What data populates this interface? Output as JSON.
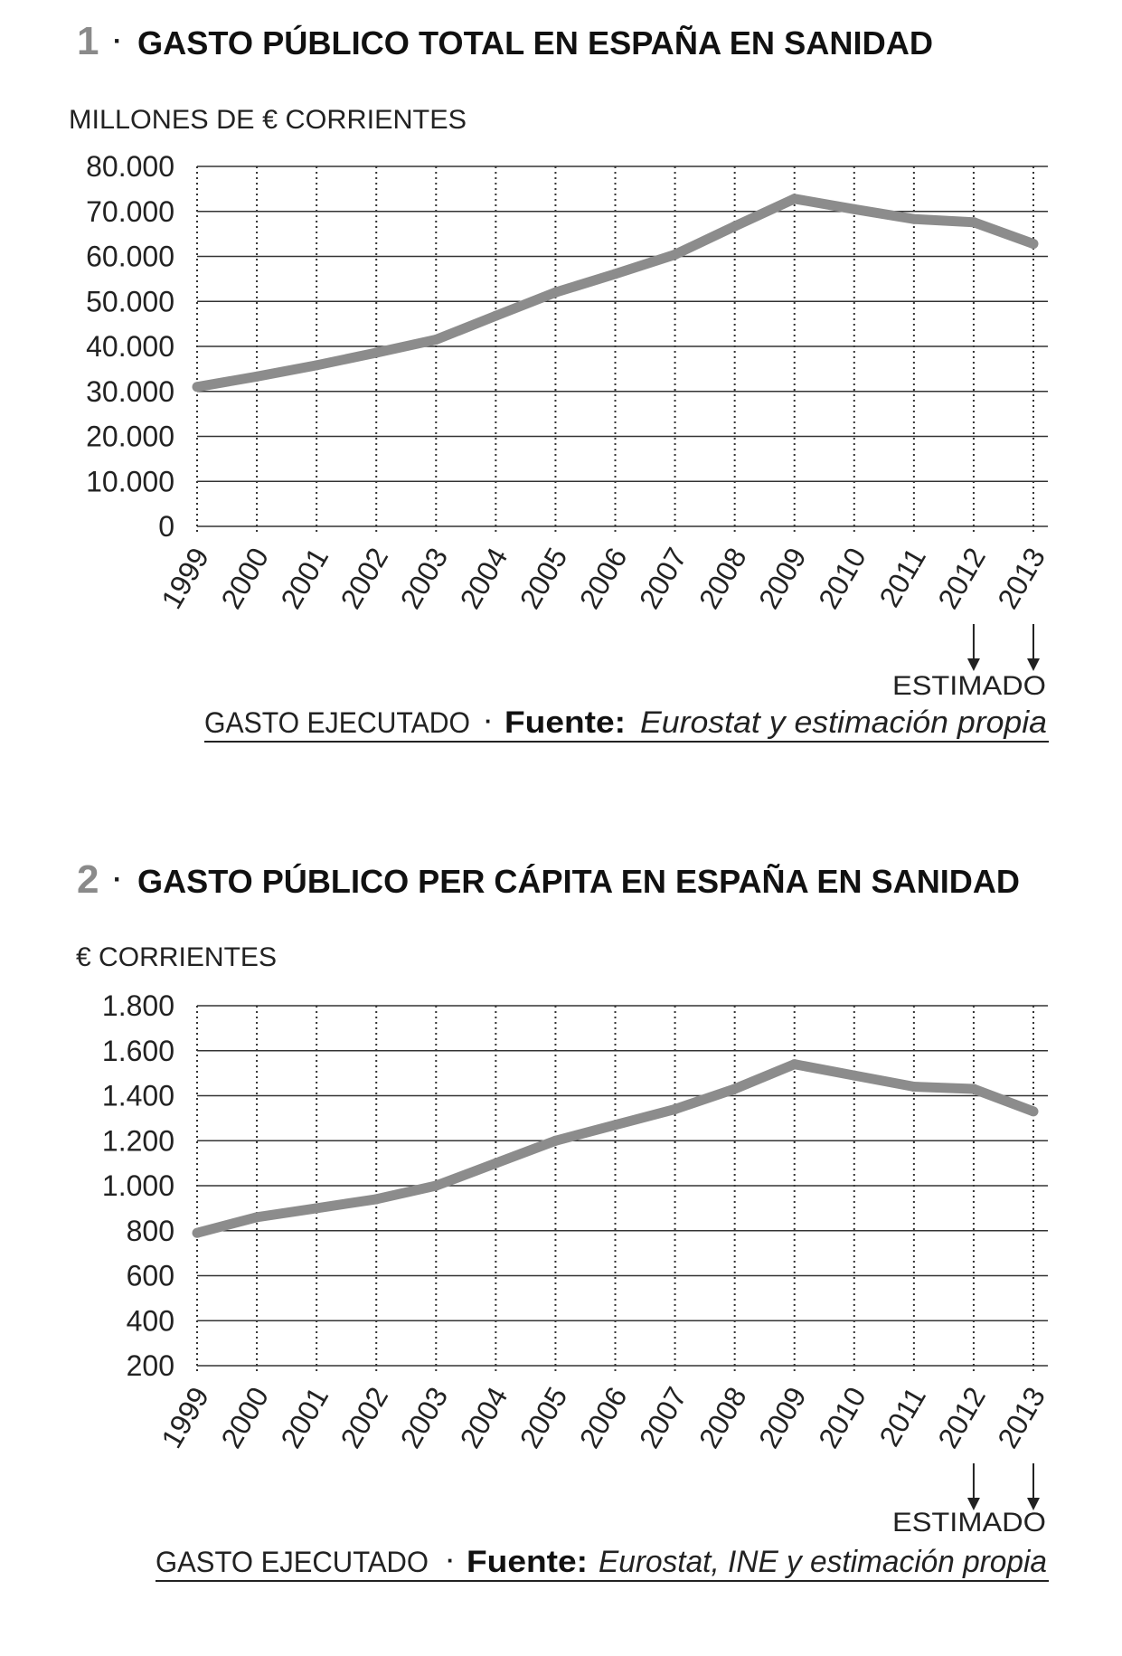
{
  "charts": [
    {
      "number": "1",
      "separator": "·",
      "title": "GASTO PÚBLICO TOTAL EN ESPAÑA EN SANIDAD",
      "unit_label": "MILLONES DE € CORRIENTES",
      "estimated_label": "ESTIMADO",
      "footer_executed": "GASTO EJECUTADO",
      "footer_dot": "·",
      "footer_source_label": "Fuente:",
      "footer_source_text": "Eurostat y estimación propia"
    },
    {
      "number": "2",
      "separator": "·",
      "title": "GASTO PÚBLICO PER CÁPITA EN ESPAÑA EN SANIDAD",
      "unit_label": "€ CORRIENTES",
      "estimated_label": "ESTIMADO",
      "footer_executed": "GASTO EJECUTADO",
      "footer_dot": "·",
      "footer_source_label": "Fuente:",
      "footer_source_text": "Eurostat, INE y estimación propia"
    }
  ],
  "chart_data": [
    {
      "type": "line",
      "title": "GASTO PÚBLICO TOTAL EN ESPAÑA EN SANIDAD",
      "ylabel": "MILLONES DE € CORRIENTES",
      "xlabel": "",
      "categories": [
        "1999",
        "2000",
        "2001",
        "2002",
        "2003",
        "2004",
        "2005",
        "2006",
        "2007",
        "2008",
        "2009",
        "2010",
        "2011",
        "2012",
        "2013"
      ],
      "values": [
        31000,
        33300,
        35800,
        38600,
        41500,
        46800,
        52000,
        56100,
        60400,
        66700,
        72800,
        70500,
        68300,
        67600,
        62800
      ],
      "estimated_categories": [
        "2012",
        "2013"
      ],
      "ylim": [
        0,
        80000
      ],
      "yticks": [
        0,
        10000,
        20000,
        30000,
        40000,
        50000,
        60000,
        70000,
        80000
      ],
      "ytick_labels": [
        "0",
        "10.000",
        "20.000",
        "30.000",
        "40.000",
        "50.000",
        "60.000",
        "70.000",
        "80.000"
      ],
      "grid": true,
      "line_color": "#8c8c8c"
    },
    {
      "type": "line",
      "title": "GASTO PÚBLICO PER CÁPITA EN ESPAÑA EN SANIDAD",
      "ylabel": "€ CORRIENTES",
      "xlabel": "",
      "categories": [
        "1999",
        "2000",
        "2001",
        "2002",
        "2003",
        "2004",
        "2005",
        "2006",
        "2007",
        "2008",
        "2009",
        "2010",
        "2011",
        "2012",
        "2013"
      ],
      "values": [
        790,
        860,
        900,
        940,
        1000,
        1100,
        1200,
        1270,
        1340,
        1430,
        1540,
        1490,
        1440,
        1430,
        1330
      ],
      "estimated_categories": [
        "2012",
        "2013"
      ],
      "ylim": [
        200,
        1800
      ],
      "yticks": [
        200,
        400,
        600,
        800,
        1000,
        1200,
        1400,
        1600,
        1800
      ],
      "ytick_labels": [
        "200",
        "400",
        "600",
        "800",
        "1.000",
        "1.200",
        "1.400",
        "1.600",
        "1.800"
      ],
      "grid": true,
      "line_color": "#8c8c8c"
    }
  ]
}
